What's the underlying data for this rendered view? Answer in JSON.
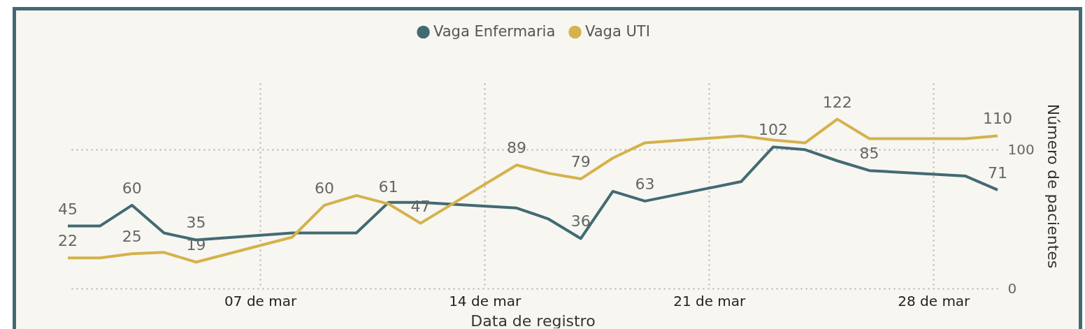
{
  "chart_data": {
    "type": "line",
    "xlabel": "Data de registro",
    "ylabel": "Número de pacientes",
    "x": [
      "--03-01",
      "--03-02",
      "--03-03",
      "--03-04",
      "--03-05",
      "--03-08",
      "--03-09",
      "--03-10",
      "--03-11",
      "--03-12",
      "--03-15",
      "--03-16",
      "--03-17",
      "--03-18",
      "--03-19",
      "--03-22",
      "--03-23",
      "--03-24",
      "--03-25",
      "--03-26",
      "--03-29",
      "--03-30"
    ],
    "series": [
      {
        "name": "Vaga Enfermaria",
        "color": "#436a73",
        "values": [
          45,
          45,
          60,
          40,
          35,
          40,
          40,
          40,
          62,
          62,
          58,
          50,
          36,
          70,
          63,
          77,
          102,
          100,
          92,
          85,
          81,
          71
        ],
        "value_labels": [
          "45",
          null,
          "60",
          null,
          "35",
          null,
          null,
          null,
          null,
          null,
          null,
          null,
          "36",
          null,
          "63",
          null,
          "102",
          null,
          null,
          "85",
          null,
          "71"
        ]
      },
      {
        "name": "Vaga UTI",
        "color": "#d4b24c",
        "values": [
          22,
          22,
          25,
          26,
          19,
          37,
          60,
          67,
          61,
          47,
          89,
          83,
          79,
          94,
          105,
          110,
          107,
          105,
          122,
          108,
          108,
          110
        ],
        "value_labels": [
          "22",
          null,
          "25",
          null,
          "19",
          null,
          "60",
          null,
          "61",
          "47",
          "89",
          null,
          "79",
          null,
          null,
          null,
          null,
          null,
          "122",
          null,
          null,
          "110"
        ]
      }
    ],
    "xlim": [
      "--03-01",
      "--03-30"
    ],
    "xticks": [
      {
        "value": "--03-07",
        "label": "07 de mar"
      },
      {
        "value": "--03-14",
        "label": "14 de mar"
      },
      {
        "value": "--03-21",
        "label": "21 de mar"
      },
      {
        "value": "--03-28",
        "label": "28 de mar"
      }
    ],
    "ylim": [
      0,
      148
    ],
    "yticks": [
      0,
      100
    ],
    "grid": true,
    "legend": "top",
    "marker": "none",
    "line_style": "solid"
  }
}
